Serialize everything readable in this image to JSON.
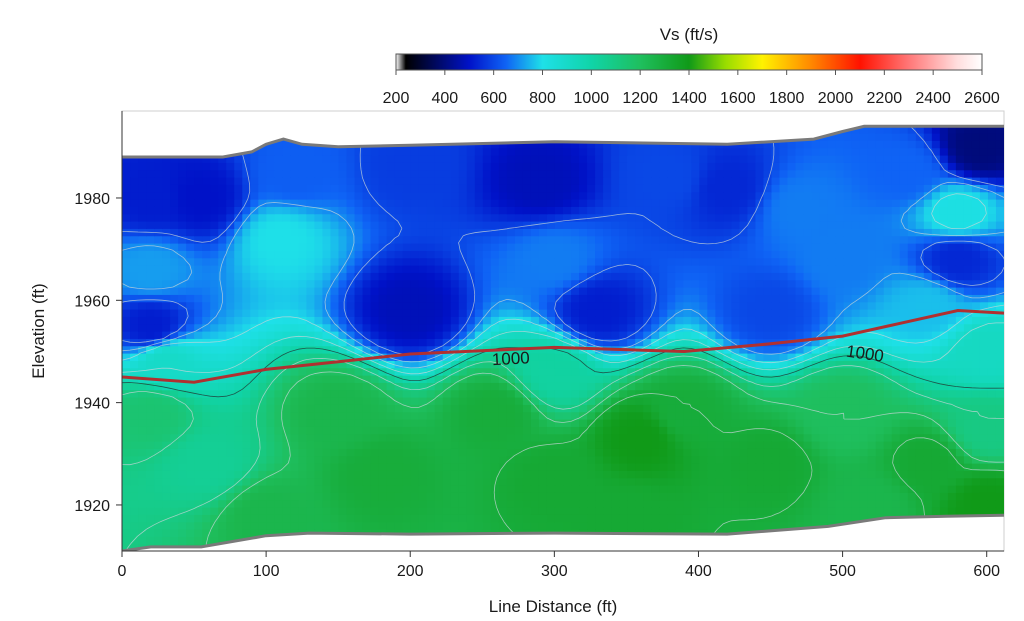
{
  "chart_data": {
    "type": "heatmap",
    "title": "",
    "xlabel": "Line Distance (ft)",
    "ylabel": "Elevation (ft)",
    "xlim": [
      0,
      612
    ],
    "ylim": [
      1911,
      1997
    ],
    "x_ticks": [
      0,
      100,
      200,
      300,
      400,
      500,
      600
    ],
    "y_ticks": [
      1920,
      1940,
      1960,
      1980
    ],
    "colorbar": {
      "title": "Vs (ft/s)",
      "range": [
        200,
        2600
      ],
      "ticks": [
        200,
        400,
        600,
        800,
        1000,
        1200,
        1400,
        1600,
        1800,
        2000,
        2200,
        2400,
        2600
      ],
      "stops": [
        {
          "value": 200,
          "color": "#ffffff"
        },
        {
          "value": 240,
          "color": "#000000"
        },
        {
          "value": 500,
          "color": "#0012c8"
        },
        {
          "value": 650,
          "color": "#0f63f5"
        },
        {
          "value": 800,
          "color": "#1ee0e8"
        },
        {
          "value": 1000,
          "color": "#10d4a8"
        },
        {
          "value": 1200,
          "color": "#1fbf5e"
        },
        {
          "value": 1400,
          "color": "#109a18"
        },
        {
          "value": 1550,
          "color": "#99dd00"
        },
        {
          "value": 1700,
          "color": "#fff200"
        },
        {
          "value": 1900,
          "color": "#ff8800"
        },
        {
          "value": 2100,
          "color": "#ff1200"
        },
        {
          "value": 2300,
          "color": "#ff7777"
        },
        {
          "value": 2500,
          "color": "#ffdede"
        },
        {
          "value": 2600,
          "color": "#ffffff"
        }
      ]
    },
    "highlight_contour": {
      "value": 1000,
      "color": "#b03030",
      "points": [
        [
          0,
          1945
        ],
        [
          50,
          1944
        ],
        [
          100,
          1946.5
        ],
        [
          150,
          1948
        ],
        [
          200,
          1949.5
        ],
        [
          300,
          1950.8
        ],
        [
          390,
          1950
        ],
        [
          450,
          1951.5
        ],
        [
          500,
          1953
        ],
        [
          540,
          1955.5
        ],
        [
          580,
          1958
        ],
        [
          612,
          1957.5
        ]
      ]
    },
    "contour_labels": [
      {
        "text": "1000",
        "x": 270,
        "y": 1947.5
      },
      {
        "text": "1000",
        "x": 515,
        "y": 1948.5
      }
    ],
    "surface_profile": [
      [
        0,
        1988
      ],
      [
        70,
        1988
      ],
      [
        90,
        1989
      ],
      [
        100,
        1990.5
      ],
      [
        112,
        1991.5
      ],
      [
        125,
        1990.5
      ],
      [
        150,
        1990
      ],
      [
        200,
        1990.3
      ],
      [
        300,
        1991
      ],
      [
        420,
        1990.5
      ],
      [
        480,
        1991.5
      ],
      [
        500,
        1993
      ],
      [
        515,
        1994
      ],
      [
        612,
        1994
      ]
    ],
    "bottom_profile": [
      [
        0,
        1911
      ],
      [
        20,
        1911.8
      ],
      [
        55,
        1911.8
      ],
      [
        100,
        1914
      ],
      [
        130,
        1914.5
      ],
      [
        200,
        1914.3
      ],
      [
        300,
        1914.5
      ],
      [
        420,
        1914.3
      ],
      [
        490,
        1915.8
      ],
      [
        530,
        1917.5
      ],
      [
        572,
        1917.8
      ],
      [
        612,
        1918
      ]
    ],
    "velocity_samples": [
      {
        "x": 20,
        "y": 1980,
        "vs": 520
      },
      {
        "x": 55,
        "y": 1980,
        "vs": 500
      },
      {
        "x": 120,
        "y": 1985,
        "vs": 640
      },
      {
        "x": 200,
        "y": 1986,
        "vs": 580
      },
      {
        "x": 290,
        "y": 1983,
        "vs": 480
      },
      {
        "x": 380,
        "y": 1984,
        "vs": 600
      },
      {
        "x": 420,
        "y": 1982,
        "vs": 540
      },
      {
        "x": 470,
        "y": 1978,
        "vs": 680
      },
      {
        "x": 545,
        "y": 1985,
        "vs": 650
      },
      {
        "x": 595,
        "y": 1990,
        "vs": 400
      },
      {
        "x": 580,
        "y": 1977,
        "vs": 820
      },
      {
        "x": 580,
        "y": 1968,
        "vs": 540
      },
      {
        "x": 20,
        "y": 1966,
        "vs": 720
      },
      {
        "x": 110,
        "y": 1972,
        "vs": 800
      },
      {
        "x": 300,
        "y": 1968,
        "vs": 680
      },
      {
        "x": 500,
        "y": 1968,
        "vs": 680
      },
      {
        "x": 20,
        "y": 1955,
        "vs": 520
      },
      {
        "x": 200,
        "y": 1958,
        "vs": 480
      },
      {
        "x": 330,
        "y": 1958,
        "vs": 520
      },
      {
        "x": 450,
        "y": 1958,
        "vs": 600
      },
      {
        "x": 560,
        "y": 1959,
        "vs": 760
      },
      {
        "x": 30,
        "y": 1948,
        "vs": 900
      },
      {
        "x": 300,
        "y": 1946,
        "vs": 1020
      },
      {
        "x": 600,
        "y": 1950,
        "vs": 920
      },
      {
        "x": 20,
        "y": 1938,
        "vs": 1150
      },
      {
        "x": 150,
        "y": 1938,
        "vs": 1250
      },
      {
        "x": 260,
        "y": 1938,
        "vs": 1300
      },
      {
        "x": 390,
        "y": 1938,
        "vs": 1300
      },
      {
        "x": 500,
        "y": 1938,
        "vs": 1200
      },
      {
        "x": 600,
        "y": 1935,
        "vs": 1100
      },
      {
        "x": 60,
        "y": 1928,
        "vs": 1050
      },
      {
        "x": 180,
        "y": 1926,
        "vs": 1300
      },
      {
        "x": 300,
        "y": 1925,
        "vs": 1320
      },
      {
        "x": 360,
        "y": 1933,
        "vs": 1400
      },
      {
        "x": 450,
        "y": 1928,
        "vs": 1320
      },
      {
        "x": 560,
        "y": 1928,
        "vs": 1320
      },
      {
        "x": 600,
        "y": 1920,
        "vs": 1400
      },
      {
        "x": 100,
        "y": 1918,
        "vs": 1250
      },
      {
        "x": 350,
        "y": 1918,
        "vs": 1320
      },
      {
        "x": 520,
        "y": 1920,
        "vs": 1250
      }
    ]
  }
}
